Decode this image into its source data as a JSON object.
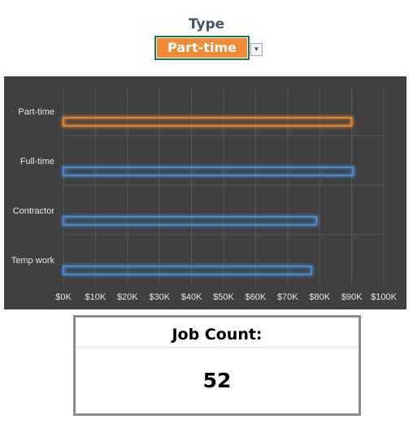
{
  "filter": {
    "label": "Type",
    "selected": "Part-time",
    "arrow_icon": "dropdown-arrow-icon"
  },
  "chart_data": {
    "type": "bar",
    "orientation": "horizontal",
    "categories": [
      "Part-time",
      "Full-time",
      "Contractor",
      "Temp work"
    ],
    "values": [
      90000,
      90500,
      79000,
      77500
    ],
    "highlighted": "Part-time",
    "xlim": [
      0,
      100000
    ],
    "xticks": [
      "$0K",
      "$10K",
      "$20K",
      "$30K",
      "$40K",
      "$50K",
      "$60K",
      "$70K",
      "$80K",
      "$90K",
      "$100K"
    ],
    "grid": true,
    "colors": {
      "background": "#404040",
      "grid": "#5a5a5a",
      "highlight": "#f08a35",
      "default": "#4a90d9",
      "label": "#e6e6e6"
    },
    "title": "",
    "xlabel": "",
    "ylabel": ""
  },
  "job_count": {
    "label": "Job Count:",
    "value": "52"
  }
}
